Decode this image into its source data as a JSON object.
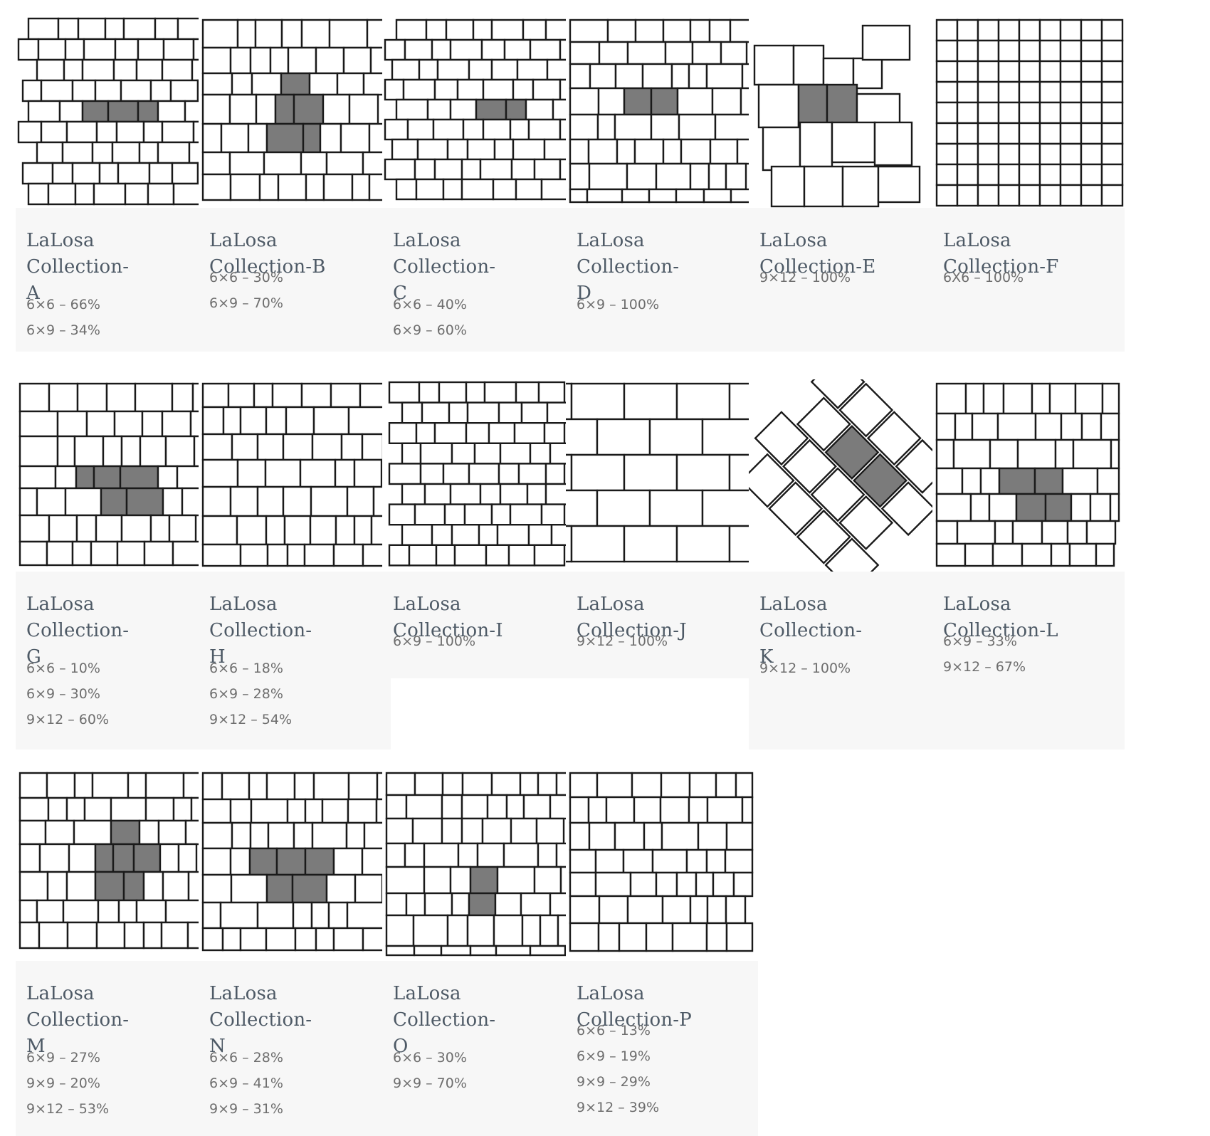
{
  "collections": [
    {
      "id": "A",
      "title": "LaLosa Collection-A",
      "title_line1": "LaLosa Collection-",
      "title_line2": "A",
      "specs": [
        "6×6 – 66%",
        "6×9 – 34%"
      ],
      "thumbnail": "lalosa-a-pattern"
    },
    {
      "id": "B",
      "title": "LaLosa Collection-B",
      "title_line1": "LaLosa Collection-B",
      "title_line2": "",
      "specs": [
        "6×6 – 30%",
        "6×9 – 70%"
      ],
      "thumbnail": "lalosa-b-pattern"
    },
    {
      "id": "C",
      "title": "LaLosa Collection-C",
      "title_line1": "LaLosa Collection-",
      "title_line2": "C",
      "specs": [
        "6×6 – 40%",
        "6×9 – 60%"
      ],
      "thumbnail": "lalosa-c-pattern"
    },
    {
      "id": "D",
      "title": "LaLosa Collection-D",
      "title_line1": "LaLosa Collection-",
      "title_line2": "D",
      "specs": [
        "6×9 – 100%"
      ],
      "thumbnail": "lalosa-d-pattern"
    },
    {
      "id": "E",
      "title": "LaLosa Collection-E",
      "title_line1": "LaLosa Collection-E",
      "title_line2": "",
      "specs": [
        "9×12 – 100%"
      ],
      "thumbnail": "lalosa-e-pattern"
    },
    {
      "id": "F",
      "title": "LaLosa Collection-F",
      "title_line1": "LaLosa Collection-F",
      "title_line2": "",
      "specs": [
        "6X6 – 100%"
      ],
      "thumbnail": "lalosa-f-pattern"
    },
    {
      "id": "G",
      "title": "LaLosa Collection-G",
      "title_line1": "LaLosa Collection-",
      "title_line2": "G",
      "specs": [
        "6×6 – 10%",
        "6×9 – 30%",
        "9×12 – 60%"
      ],
      "thumbnail": "lalosa-g-pattern"
    },
    {
      "id": "H",
      "title": "LaLosa Collection-H",
      "title_line1": "LaLosa Collection-",
      "title_line2": "H",
      "specs": [
        "6×6 – 18%",
        "6×9 – 28%",
        "9×12 – 54%"
      ],
      "thumbnail": "lalosa-h-pattern"
    },
    {
      "id": "I",
      "title": "LaLosa Collection-I",
      "title_line1": "LaLosa Collection-I",
      "title_line2": "",
      "specs": [
        "6×9 – 100%"
      ],
      "thumbnail": "lalosa-i-pattern"
    },
    {
      "id": "J",
      "title": "LaLosa Collection-J",
      "title_line1": "LaLosa Collection-J",
      "title_line2": "",
      "specs": [
        "9×12 – 100%"
      ],
      "thumbnail": "lalosa-j-pattern"
    },
    {
      "id": "K",
      "title": "LaLosa Collection-K",
      "title_line1": "LaLosa Collection-",
      "title_line2": "K",
      "specs": [
        "9×12 – 100%"
      ],
      "thumbnail": "lalosa-k-pattern"
    },
    {
      "id": "L",
      "title": "LaLosa Collection-L",
      "title_line1": "LaLosa Collection-L",
      "title_line2": "",
      "specs": [
        "6×9 – 33%",
        "9×12 – 67%"
      ],
      "thumbnail": "lalosa-l-pattern"
    },
    {
      "id": "M",
      "title": "LaLosa Collection-M",
      "title_line1": "LaLosa Collection-",
      "title_line2": "M",
      "specs": [
        "6×9 – 27%",
        "9×9 – 20%",
        "9×12 – 53%"
      ],
      "thumbnail": "lalosa-m-pattern"
    },
    {
      "id": "N",
      "title": "LaLosa Collection-N",
      "title_line1": "LaLosa Collection-",
      "title_line2": "N",
      "specs": [
        "6×6 – 28%",
        "6×9 – 41%",
        "9×9 – 31%"
      ],
      "thumbnail": "lalosa-n-pattern"
    },
    {
      "id": "O",
      "title": "LaLosa Collection-O",
      "title_line1": "LaLosa Collection-",
      "title_line2": "O",
      "specs": [
        "6×6 – 30%",
        "9×9 – 70%"
      ],
      "thumbnail": "lalosa-o-pattern"
    },
    {
      "id": "P",
      "title": "LaLosa Collection-P",
      "title_line1": "LaLosa Collection-P",
      "title_line2": "",
      "specs": [
        "6×6 – 13%",
        "6×9 – 19%",
        "9×9 – 29%",
        "9×12 – 39%"
      ],
      "thumbnail": "lalosa-p-pattern"
    }
  ],
  "colors": {
    "tile_stroke": "#1a1a1a",
    "tile_highlight": "#7b7b7b",
    "title": "#4e5a66",
    "spec": "#6e6e6e",
    "card_bg": "#f7f7f7"
  }
}
